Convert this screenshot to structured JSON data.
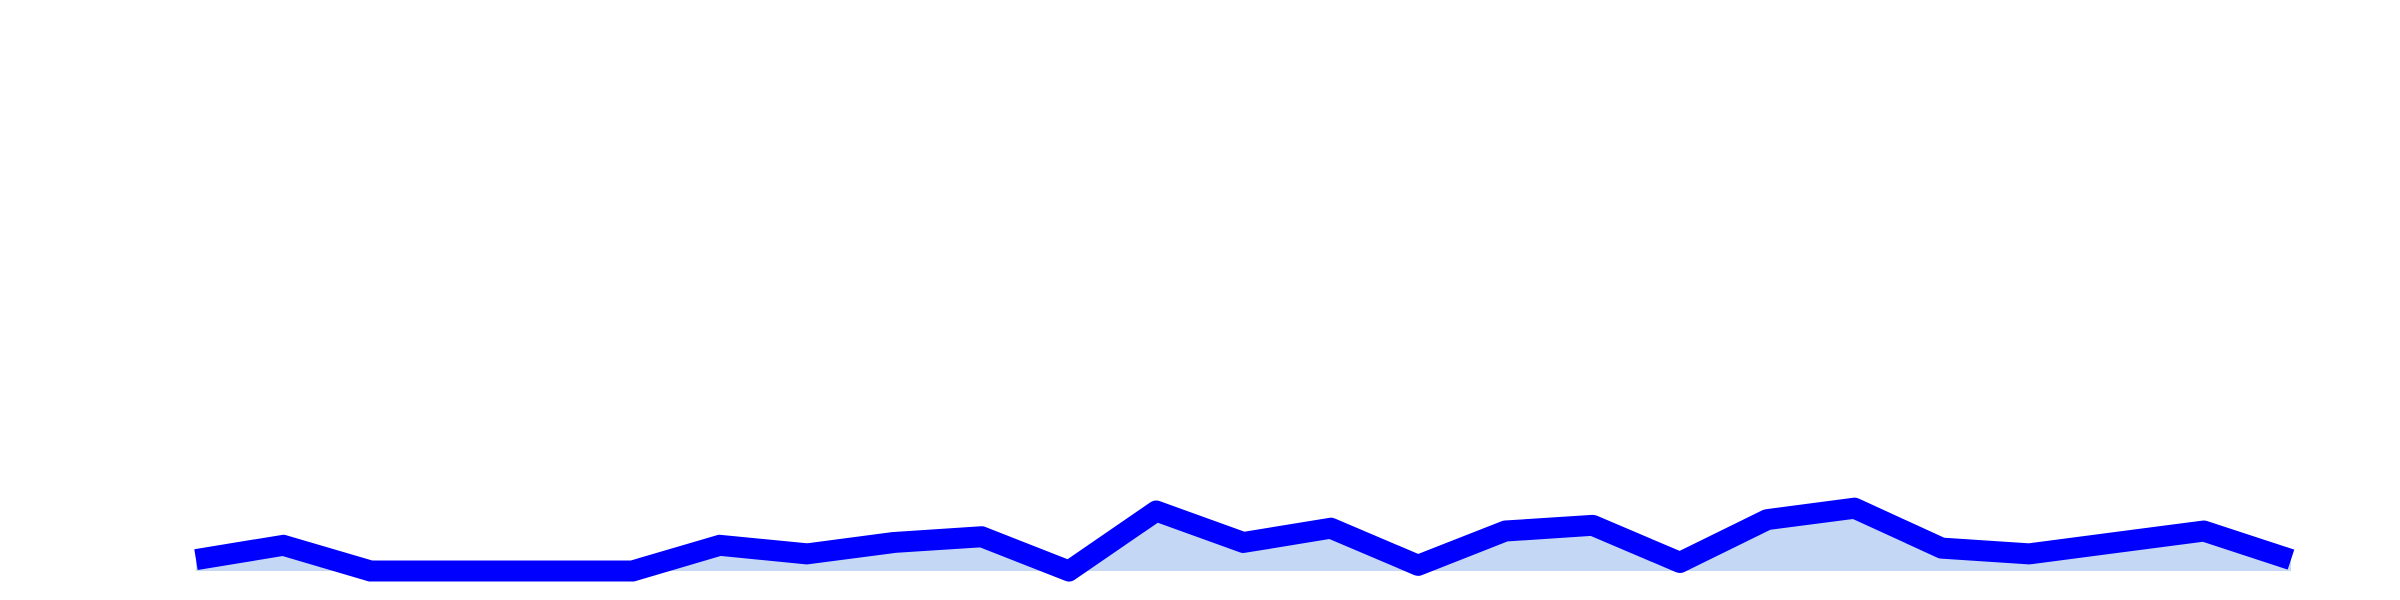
{
  "chart_data": {
    "type": "line",
    "values": [
      2,
      4.5,
      0,
      0,
      0,
      0,
      4.5,
      3,
      5,
      6,
      0,
      10.5,
      5,
      7.5,
      1,
      7,
      8,
      1.5,
      9,
      11,
      4,
      3,
      5,
      7,
      2
    ],
    "color": "#0000ff",
    "area_color": "#c4d7f5",
    "ylim": [
      0,
      100
    ]
  }
}
